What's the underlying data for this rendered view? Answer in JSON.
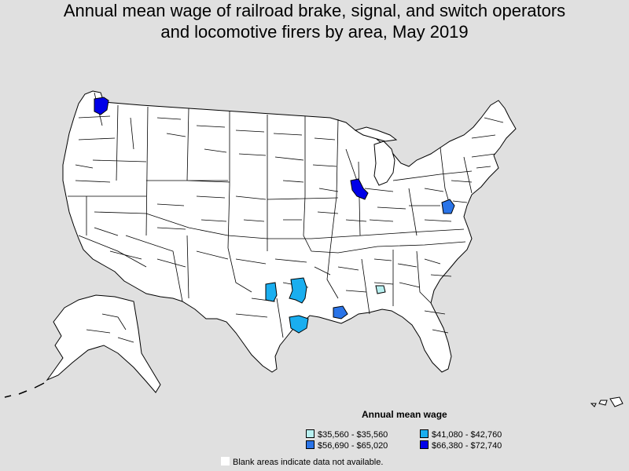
{
  "title": {
    "line1": "Annual mean wage of railroad brake, signal, and switch operators",
    "line2": "and locomotive firers by area, May 2019"
  },
  "legend": {
    "title": "Annual mean wage",
    "items": [
      {
        "label": "$35,560 - $35,560",
        "color": "#b8f0f0"
      },
      {
        "label": "$41,080 - $42,760",
        "color": "#1aaeef"
      },
      {
        "label": "$56,690 - $65,020",
        "color": "#2a74e8"
      },
      {
        "label": "$66,380 - $72,740",
        "color": "#0000e8"
      }
    ],
    "blank_note": "Blank areas indicate data not available."
  },
  "colors": {
    "background": "#e0e0e0",
    "land": "#ffffff",
    "border": "#000000"
  }
}
